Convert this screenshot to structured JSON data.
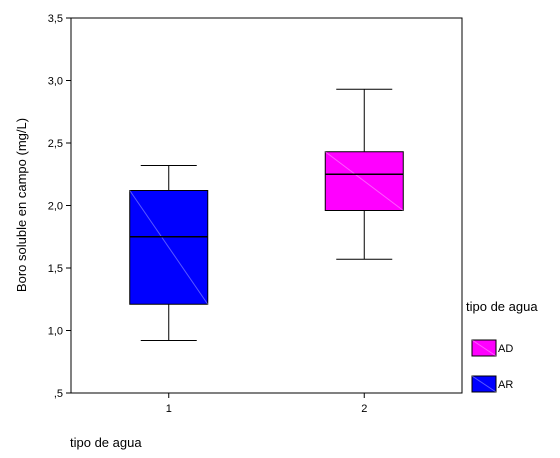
{
  "chart_data": {
    "type": "boxplot",
    "xlabel": "tipo de agua",
    "ylabel": "Boro soluble en campo (mg/L)",
    "categories": [
      "1",
      "2"
    ],
    "ylim": [
      0.5,
      3.5
    ],
    "yticks": [
      0.5,
      1.0,
      1.5,
      2.0,
      2.5,
      3.0,
      3.5
    ],
    "ytick_labels": [
      ",5",
      "1,0",
      "1,5",
      "2,0",
      "2,5",
      "3,0",
      "3,5"
    ],
    "grid": false,
    "legend": {
      "title": "tipo de agua",
      "position": "right",
      "entries": [
        {
          "label": "AD",
          "color": "#ff00ff"
        },
        {
          "label": "AR",
          "color": "#0000ff"
        }
      ]
    },
    "series": [
      {
        "name": "AR",
        "category": "1",
        "color": "#0000ff",
        "min": 0.92,
        "q1": 1.21,
        "median": 1.75,
        "q3": 2.12,
        "max": 2.32
      },
      {
        "name": "AD",
        "category": "2",
        "color": "#ff00ff",
        "min": 1.57,
        "q1": 1.96,
        "median": 2.25,
        "q3": 2.43,
        "max": 2.93
      }
    ]
  }
}
